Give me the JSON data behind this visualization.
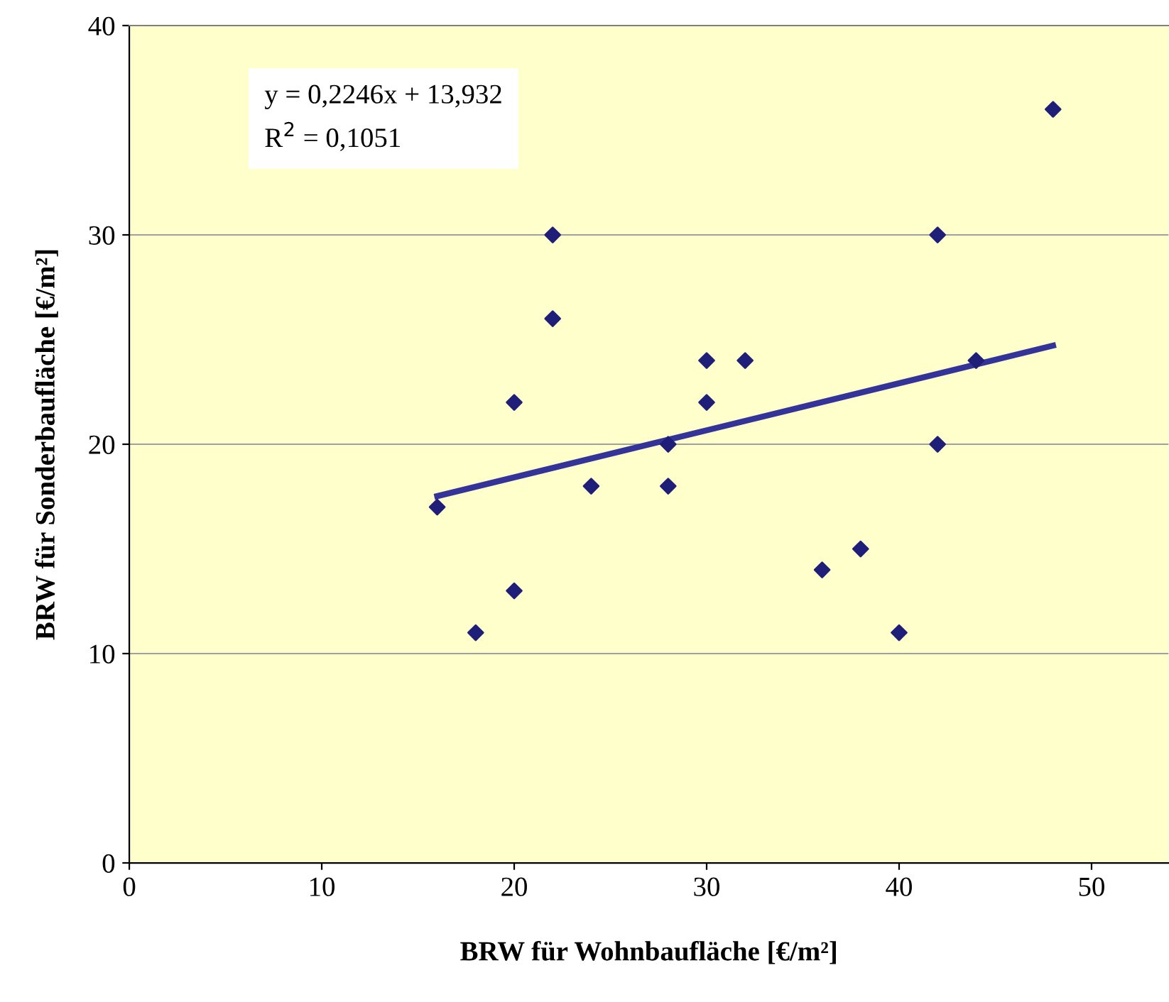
{
  "chart_data": {
    "type": "scatter",
    "xlabel": "BRW für Wohnbaufläche [€/m²]",
    "ylabel": "BRW für Sonderbaufläche [€/m²]",
    "annotations": [
      "y = 0,2246x + 13,932\nR$^{2}$ = 0,1051"
    ],
    "xlim": [
      0,
      54
    ],
    "xticks": [
      0,
      10,
      20,
      30,
      40,
      50
    ],
    "ylim": [
      0,
      40
    ],
    "yticks": [
      0,
      10,
      20,
      30,
      40
    ],
    "grid": "y",
    "legend": false,
    "series": [
      {
        "marker": "diamond",
        "color": "#1f1f7a",
        "x": [
          16,
          18,
          20,
          20,
          22,
          22,
          24,
          28,
          28,
          30,
          30,
          32,
          36,
          38,
          40,
          42,
          42,
          44,
          48
        ],
        "values": [
          17,
          11,
          22,
          13,
          30,
          26,
          18,
          20,
          18,
          24,
          22,
          24,
          14,
          15,
          11,
          30,
          20,
          24,
          36
        ]
      },
      {
        "type": "line",
        "color": "#333399",
        "line_style": "solid",
        "x": [
          16,
          48
        ],
        "values": [
          17.52,
          24.71
        ]
      }
    ]
  }
}
